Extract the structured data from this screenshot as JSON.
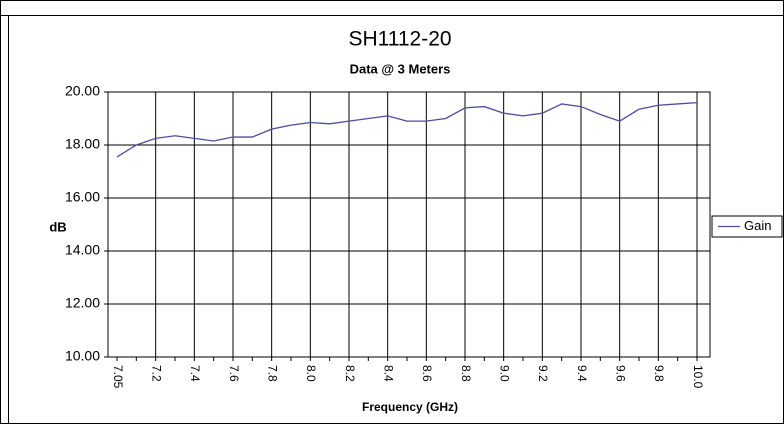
{
  "chart_data": {
    "type": "line",
    "title": "SH1112-20",
    "subtitle": "Data @ 3 Meters",
    "x_label": "Frequency (GHz)",
    "y_label": "dB",
    "categories": [
      "7.05",
      null,
      "7.2",
      null,
      "7.4",
      null,
      "7.6",
      null,
      "7.8",
      null,
      "8.0",
      null,
      "8.2",
      null,
      "8.4",
      null,
      "8.6",
      null,
      "8.8",
      null,
      "9.0",
      null,
      "9.2",
      null,
      "9.4",
      null,
      "9.6",
      null,
      "9.8",
      null,
      "10.0"
    ],
    "series": [
      {
        "name": "Gain",
        "color": "#4a4f9e",
        "values": [
          17.55,
          18.0,
          18.25,
          18.35,
          18.25,
          18.15,
          18.3,
          18.3,
          18.6,
          18.75,
          18.85,
          18.8,
          18.9,
          19.0,
          19.1,
          18.9,
          18.9,
          19.0,
          19.4,
          19.45,
          19.2,
          19.1,
          19.2,
          19.55,
          19.45,
          19.15,
          18.9,
          19.35,
          19.5,
          19.55,
          19.6
        ]
      }
    ],
    "ylim": [
      10,
      20
    ],
    "yticks": [
      {
        "value": 10,
        "label": "10.00"
      },
      {
        "value": 12,
        "label": "12.00"
      },
      {
        "value": 14,
        "label": "14.00"
      },
      {
        "value": 16,
        "label": "16.00"
      },
      {
        "value": 18,
        "label": "18.00"
      },
      {
        "value": 20,
        "label": "20.00"
      }
    ],
    "grid": true,
    "legend": "right"
  }
}
